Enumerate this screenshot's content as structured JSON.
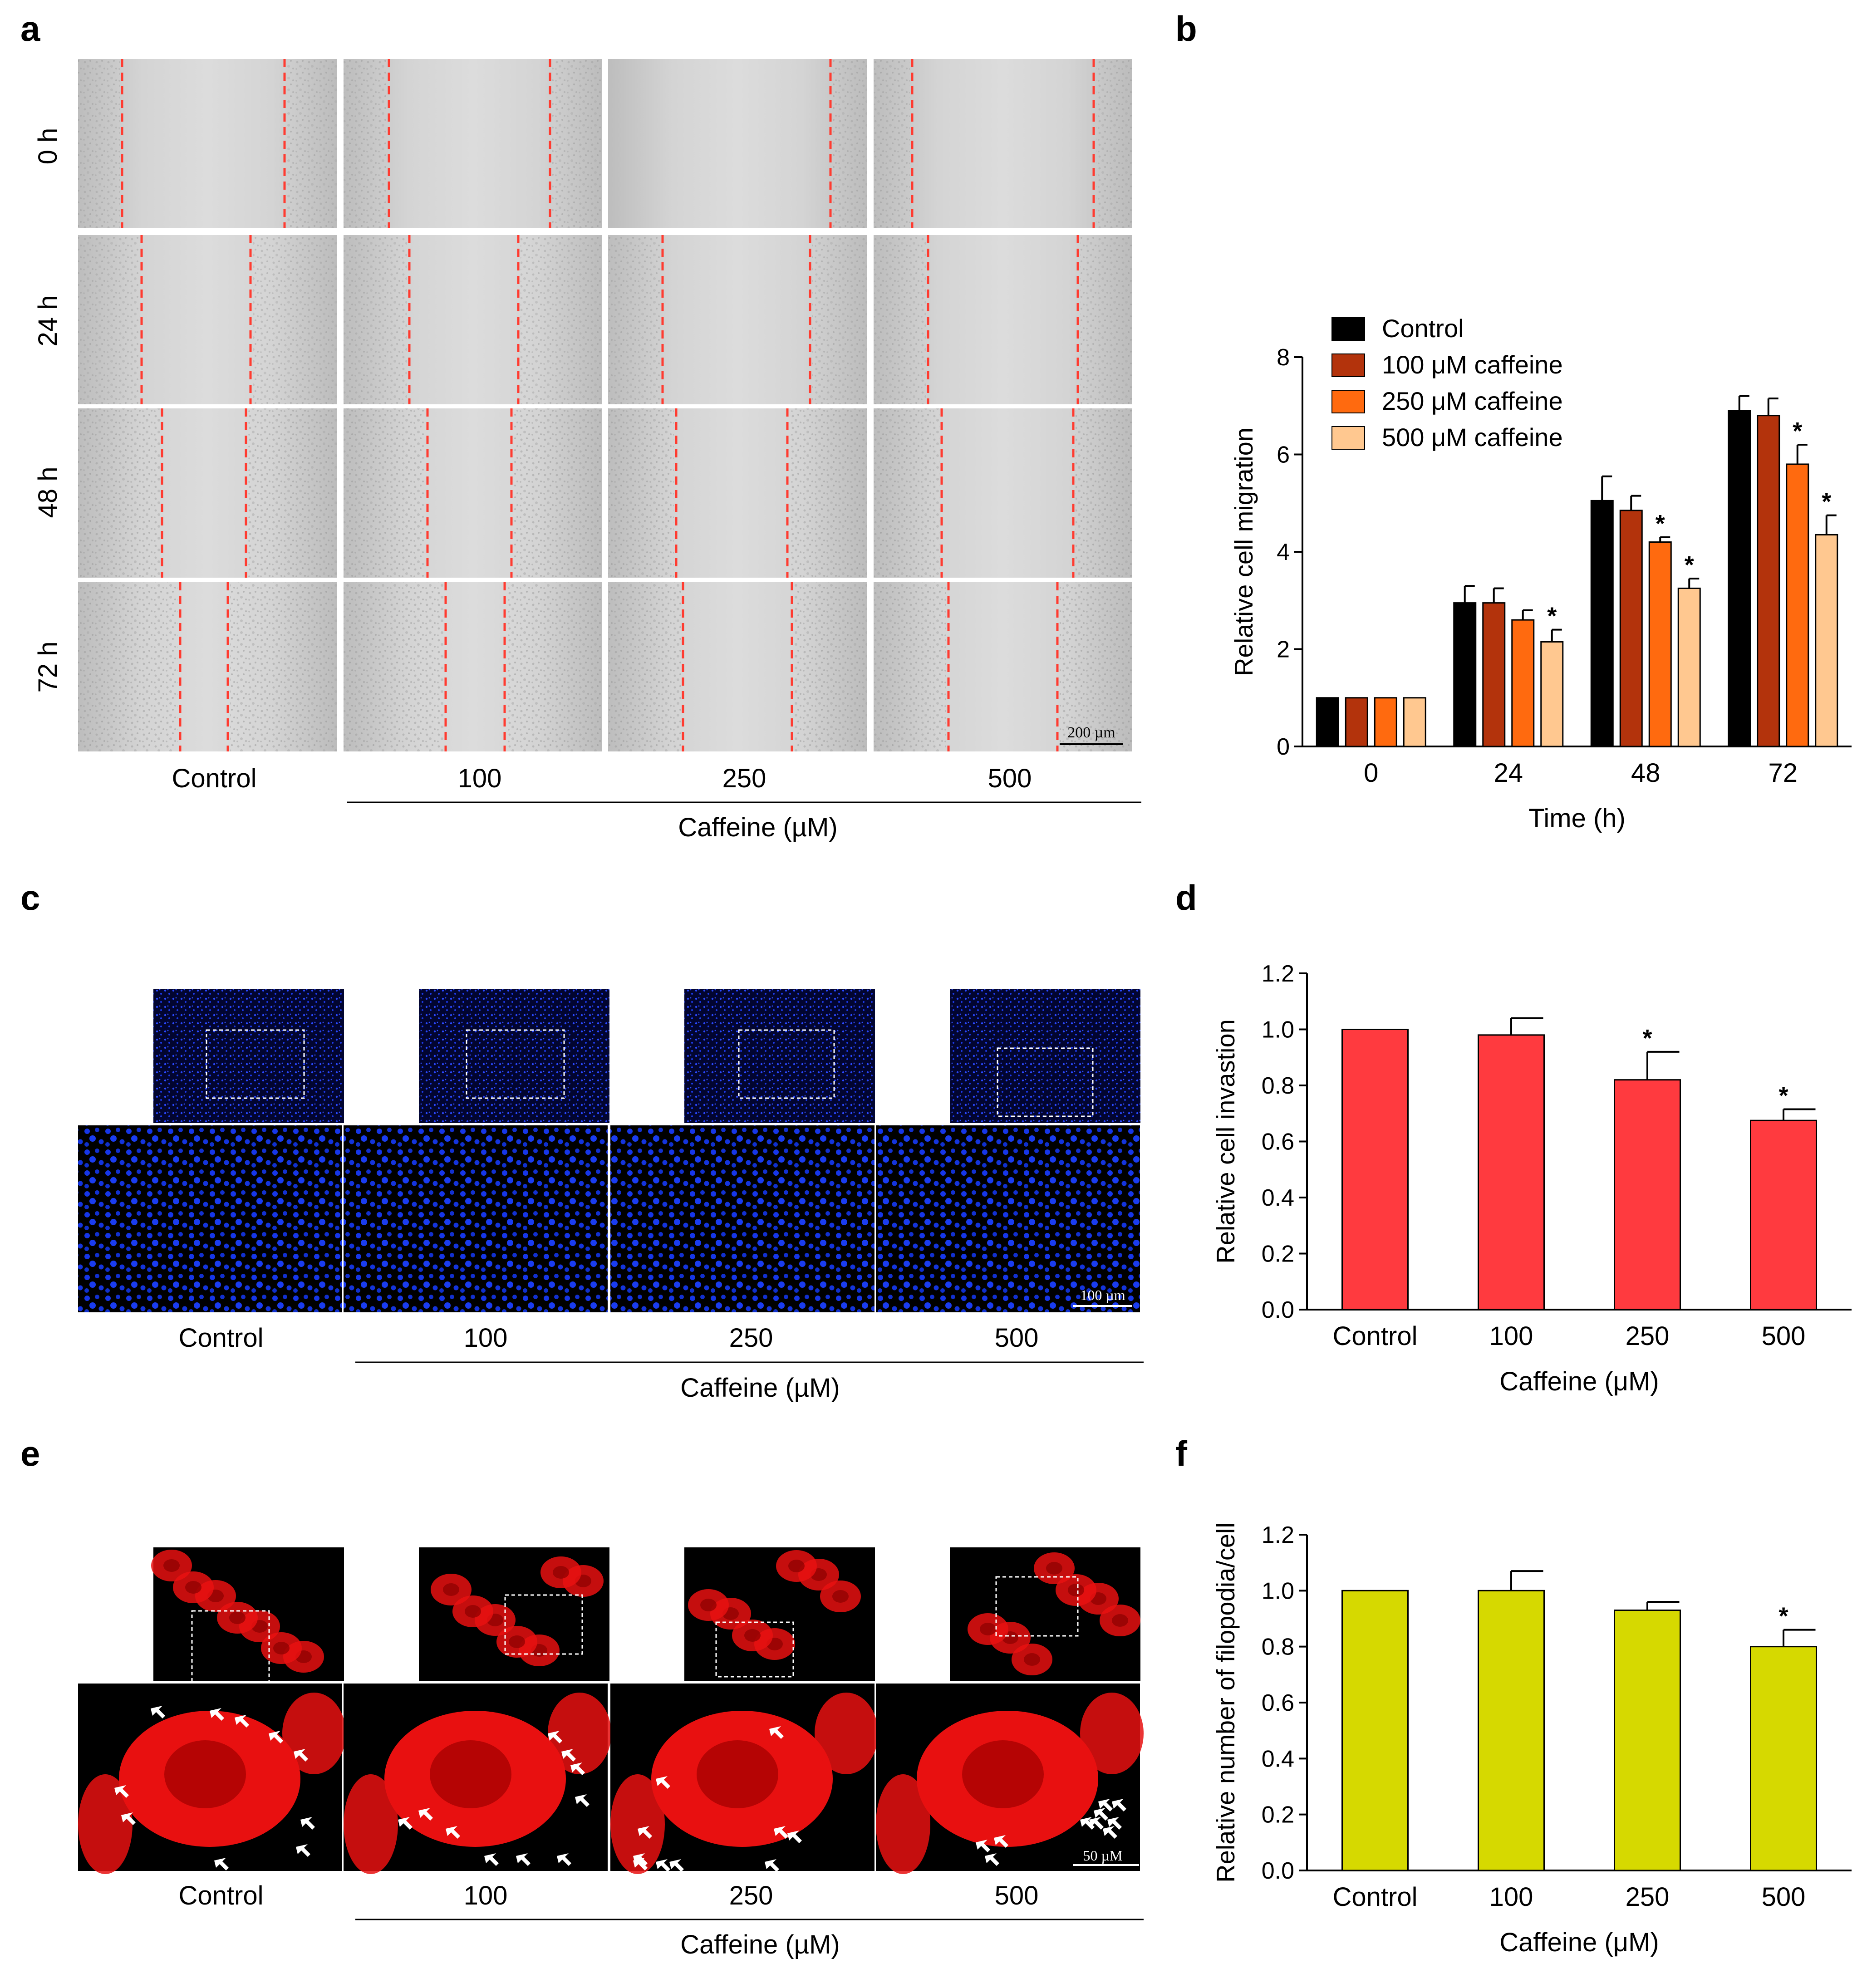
{
  "panel_labels": [
    "a",
    "b",
    "c",
    "d",
    "e",
    "f"
  ],
  "panel_a": {
    "row_labels": [
      "0 h",
      "24 h",
      "48 h",
      "72 h"
    ],
    "col_labels": [
      "Control",
      "100",
      "250",
      "500"
    ],
    "group_label": "Caffeine (µM)",
    "scale_bar": "200 µm"
  },
  "panel_c": {
    "col_labels": [
      "Control",
      "100",
      "250",
      "500"
    ],
    "group_label": "Caffeine (µM)",
    "scale_bar": "100 µm"
  },
  "panel_e": {
    "col_labels": [
      "Control",
      "100",
      "250",
      "500"
    ],
    "group_label": "Caffeine (µM)",
    "scale_bar": "50 µM"
  },
  "colors": {
    "control": "#000000",
    "c100": "#b3330c",
    "c250": "#ff6a0f",
    "c500": "#ffc890",
    "invasion": "#ff3a3f",
    "filopodia": "#d6d900",
    "wound_line": "#ff3b30",
    "dapi": "#1030e0",
    "phalloidin": "#e81010"
  },
  "chart_data": [
    {
      "panel": "b",
      "type": "bar",
      "categories": [
        "0",
        "24",
        "48",
        "72"
      ],
      "series": [
        {
          "name": "Control",
          "values": [
            1.0,
            2.95,
            5.05,
            6.9
          ],
          "errors": [
            0,
            0.35,
            0.5,
            0.3
          ],
          "sig": [
            false,
            false,
            false,
            false
          ]
        },
        {
          "name": "100 μM caffeine",
          "values": [
            1.0,
            2.95,
            4.85,
            6.8
          ],
          "errors": [
            0,
            0.3,
            0.3,
            0.35
          ],
          "sig": [
            false,
            false,
            false,
            false
          ]
        },
        {
          "name": "250 μM caffeine",
          "values": [
            1.0,
            2.6,
            4.2,
            5.8
          ],
          "errors": [
            0,
            0.2,
            0.1,
            0.4
          ],
          "sig": [
            false,
            false,
            true,
            true
          ]
        },
        {
          "name": "500 μM caffeine",
          "values": [
            1.0,
            2.15,
            3.25,
            4.35
          ],
          "errors": [
            0,
            0.25,
            0.2,
            0.4
          ],
          "sig": [
            false,
            true,
            true,
            true
          ]
        }
      ],
      "xlabel": "Time (h)",
      "ylabel": "Relative cell migration",
      "ylim": [
        0,
        8
      ],
      "yticks": [
        "0",
        "2",
        "4",
        "6",
        "8"
      ],
      "sig_mark": "*",
      "legend_position": "top-left"
    },
    {
      "panel": "d",
      "type": "bar",
      "categories": [
        "Control",
        "100",
        "250",
        "500"
      ],
      "values": [
        1.0,
        0.98,
        0.82,
        0.675
      ],
      "errors": [
        0,
        0.06,
        0.1,
        0.04
      ],
      "sig": [
        false,
        false,
        true,
        true
      ],
      "xlabel": "Caffeine (μM)",
      "ylabel": "Relative cell invastion",
      "ylim": [
        0,
        1.2
      ],
      "yticks": [
        "0.0",
        "0.2",
        "0.4",
        "0.6",
        "0.8",
        "1.0",
        "1.2"
      ],
      "sig_mark": "*"
    },
    {
      "panel": "f",
      "type": "bar",
      "categories": [
        "Control",
        "100",
        "250",
        "500"
      ],
      "values": [
        1.0,
        1.0,
        0.93,
        0.8
      ],
      "errors": [
        0,
        0.07,
        0.03,
        0.06
      ],
      "sig": [
        false,
        false,
        false,
        true
      ],
      "xlabel": "Caffeine (μM)",
      "ylabel": "Relative number of filopodia/cell",
      "ylim": [
        0,
        1.2
      ],
      "yticks": [
        "0.0",
        "0.2",
        "0.4",
        "0.6",
        "0.8",
        "1.0",
        "1.2"
      ],
      "sig_mark": "*"
    }
  ]
}
